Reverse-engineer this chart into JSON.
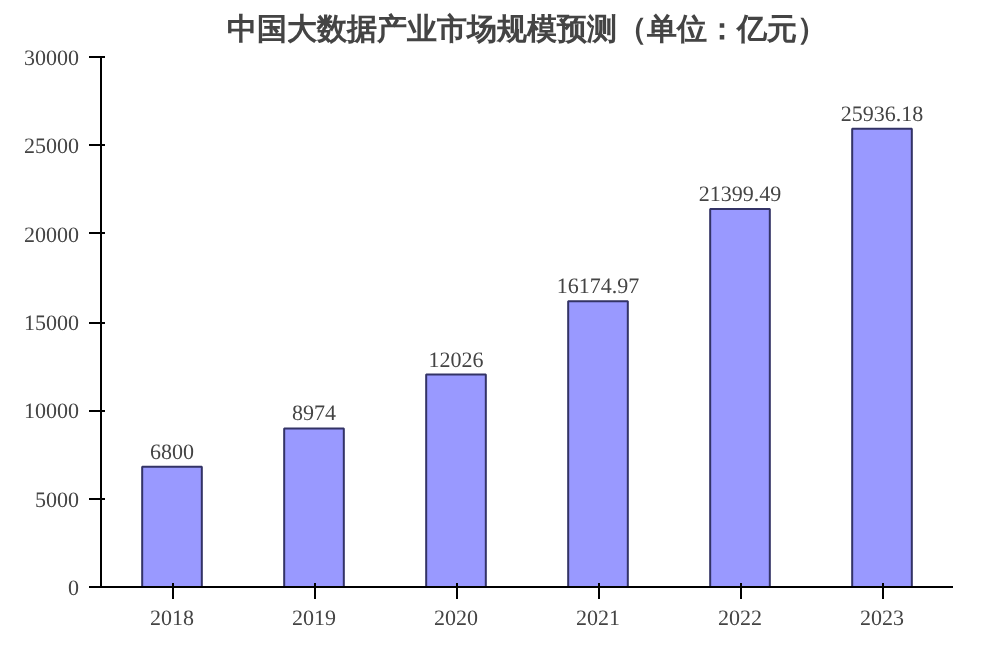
{
  "chart_data": {
    "type": "bar",
    "title": "中国大数据产业市场规模预测（单位：亿元）",
    "categories": [
      "2018",
      "2019",
      "2020",
      "2021",
      "2022",
      "2023"
    ],
    "values": [
      6800,
      8974,
      12026,
      16174.97,
      21399.49,
      25936.18
    ],
    "color": "#9999ff",
    "ylim": [
      0,
      30000
    ],
    "yticks": [
      0,
      5000,
      10000,
      15000,
      20000,
      25000,
      30000
    ],
    "grid": false,
    "data_labels": true
  }
}
